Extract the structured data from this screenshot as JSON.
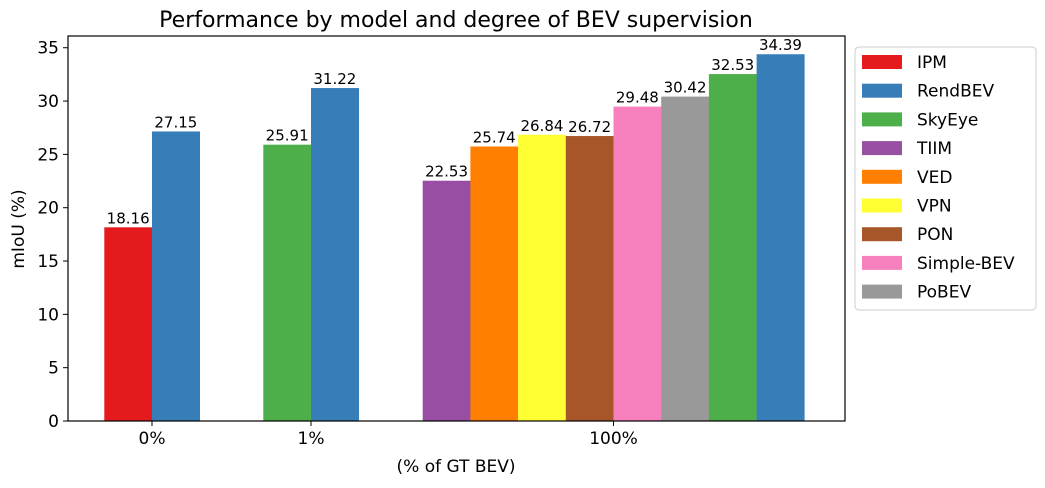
{
  "chart_data": {
    "type": "bar",
    "title": "Performance by model and degree of BEV supervision",
    "xlabel": "(% of GT BEV)",
    "ylabel": "mIoU (%)",
    "ylim": [
      0,
      36.1
    ],
    "yticks": [
      0,
      5,
      10,
      15,
      20,
      25,
      30,
      35
    ],
    "grid": false,
    "legend_placement": "outside-right-top",
    "categories": [
      "0%",
      "1%",
      "100%"
    ],
    "groups": [
      {
        "category": "0%",
        "bars": [
          {
            "model": "IPM",
            "value": 18.16
          },
          {
            "model": "RendBEV",
            "value": 27.15
          }
        ]
      },
      {
        "category": "1%",
        "bars": [
          {
            "model": "SkyEye",
            "value": 25.91
          },
          {
            "model": "RendBEV",
            "value": 31.22
          }
        ]
      },
      {
        "category": "100%",
        "bars": [
          {
            "model": "TIIM",
            "value": 22.53
          },
          {
            "model": "VED",
            "value": 25.74
          },
          {
            "model": "VPN",
            "value": 26.84
          },
          {
            "model": "PON",
            "value": 26.72
          },
          {
            "model": "Simple-BEV",
            "value": 29.48
          },
          {
            "model": "PoBEV",
            "value": 30.42
          },
          {
            "model": "SkyEye",
            "value": 32.53
          },
          {
            "model": "RendBEV",
            "value": 34.39
          }
        ]
      }
    ],
    "legend": [
      {
        "name": "IPM",
        "color": "#e41a1c"
      },
      {
        "name": "RendBEV",
        "color": "#377eb8"
      },
      {
        "name": "SkyEye",
        "color": "#4daf4a"
      },
      {
        "name": "TIIM",
        "color": "#984ea3"
      },
      {
        "name": "VED",
        "color": "#ff7f00"
      },
      {
        "name": "VPN",
        "color": "#ffff33"
      },
      {
        "name": "PON",
        "color": "#a65628"
      },
      {
        "name": "Simple-BEV",
        "color": "#f781bf"
      },
      {
        "name": "PoBEV",
        "color": "#999999"
      }
    ]
  }
}
